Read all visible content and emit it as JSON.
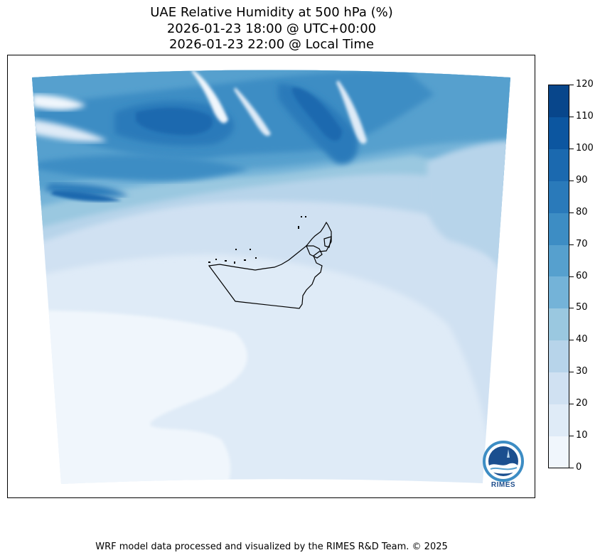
{
  "header": {
    "title": "UAE Relative Humidity at 500 hPa (%)",
    "utc_time": "2026-01-23 18:00 @ UTC+00:00",
    "local_time": "2026-01-23 22:00 @ Local Time"
  },
  "colorbar": {
    "levels": [
      0,
      10,
      20,
      30,
      40,
      50,
      60,
      70,
      80,
      90,
      100,
      110,
      120
    ],
    "tick_labels": [
      "0",
      "10",
      "20",
      "30",
      "40",
      "50",
      "60",
      "70",
      "80",
      "90",
      "100",
      "110",
      "120"
    ],
    "colors": [
      "#f0f6fc",
      "#dfebf7",
      "#d0e1f2",
      "#b7d4ea",
      "#9ac8e0",
      "#74b3d8",
      "#56a0ce",
      "#3d8dc4",
      "#2a7aba",
      "#1b69af",
      "#0c56a0",
      "#08468b"
    ]
  },
  "map": {
    "region": "UAE",
    "variable": "Relative Humidity at 500 hPa",
    "unit": "%"
  },
  "logo": {
    "text": "RIMES"
  },
  "footer": {
    "credit": "WRF model data processed and visualized by the RIMES R&D Team. © 2025"
  }
}
